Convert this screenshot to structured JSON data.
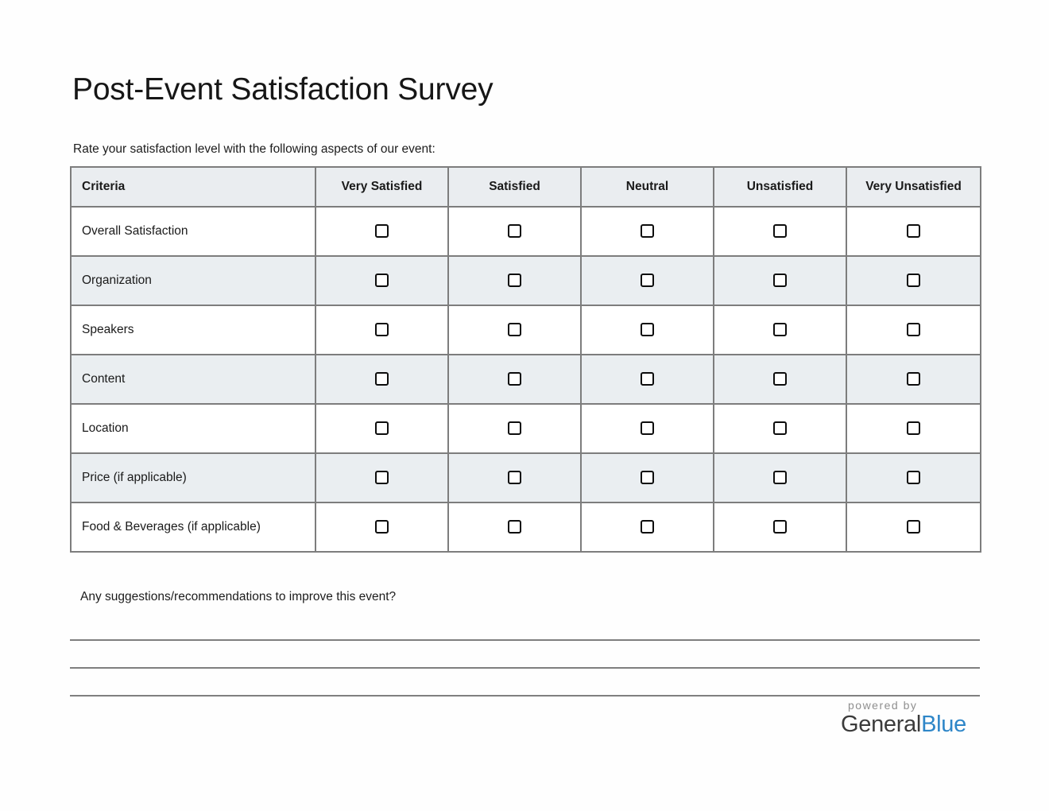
{
  "page": {
    "title": "Post-Event Satisfaction Survey",
    "intro": "Rate your satisfaction level with the following aspects of our event:",
    "suggestions_label": "Any suggestions/recommendations to improve this event?"
  },
  "table": {
    "columns": [
      "Criteria",
      "Very Satisfied",
      "Satisfied",
      "Neutral",
      "Unsatisfied",
      "Very Unsatisfied"
    ],
    "rows": [
      {
        "label": "Overall Satisfaction",
        "values": [
          false,
          false,
          false,
          false,
          false
        ]
      },
      {
        "label": "Organization",
        "values": [
          false,
          false,
          false,
          false,
          false
        ]
      },
      {
        "label": "Speakers",
        "values": [
          false,
          false,
          false,
          false,
          false
        ]
      },
      {
        "label": "Content",
        "values": [
          false,
          false,
          false,
          false,
          false
        ]
      },
      {
        "label": "Location",
        "values": [
          false,
          false,
          false,
          false,
          false
        ]
      },
      {
        "label": "Price (if applicable)",
        "values": [
          false,
          false,
          false,
          false,
          false
        ]
      },
      {
        "label": "Food & Beverages (if applicable)",
        "values": [
          false,
          false,
          false,
          false,
          false
        ]
      }
    ]
  },
  "answer_lines_count": 3,
  "footer": {
    "powered_by": "powered by",
    "brand_primary": "General",
    "brand_accent": "Blue"
  },
  "colors": {
    "brand_accent_blue": "#2E86C8",
    "brand_primary_gray": "#3B3B3B",
    "powered_by_gray": "#8F8F8F",
    "header_row_bg": "#EAEDF0",
    "alt_row_bg": "#EAEEF1",
    "table_outer_border": "#3F3F3F",
    "table_inner_border": "#7D7D7D",
    "answer_line_gray": "#7F7F7F",
    "checkbox_border": "#0D0D0D",
    "text_dark": "#1A1A1A"
  }
}
